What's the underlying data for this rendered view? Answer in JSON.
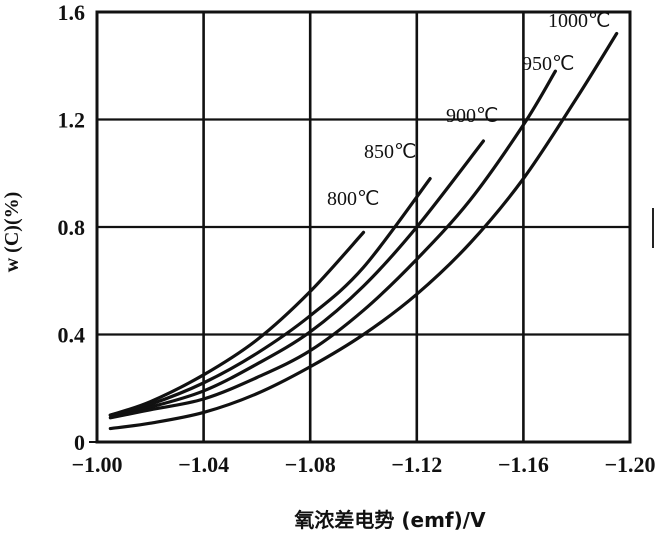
{
  "chart_data": {
    "type": "line",
    "title": "",
    "xlabel": "氧浓差电势 (emf)/V",
    "ylabel": "w (C)(%)",
    "xlim": [
      -1.0,
      -1.2
    ],
    "ylim": [
      0,
      1.6
    ],
    "x_ticks": [
      "-1.00",
      "-1.04",
      "-1.08",
      "-1.12",
      "-1.16",
      "-1.20"
    ],
    "y_ticks": [
      "0",
      "0.4",
      "0.8",
      "1.2",
      "1.6"
    ],
    "grid": true,
    "legend": "inline labels at curve ends",
    "series": [
      {
        "name": "800℃",
        "x": [
          -1.005,
          -1.02,
          -1.04,
          -1.06,
          -1.08,
          -1.1
        ],
        "values": [
          0.1,
          0.15,
          0.25,
          0.38,
          0.56,
          0.78
        ]
      },
      {
        "name": "850℃",
        "x": [
          -1.005,
          -1.02,
          -1.04,
          -1.06,
          -1.08,
          -1.1,
          -1.125
        ],
        "values": [
          0.1,
          0.14,
          0.22,
          0.33,
          0.47,
          0.65,
          0.98
        ]
      },
      {
        "name": "900℃",
        "x": [
          -1.005,
          -1.02,
          -1.04,
          -1.06,
          -1.08,
          -1.1,
          -1.12,
          -1.145
        ],
        "values": [
          0.1,
          0.13,
          0.19,
          0.29,
          0.41,
          0.58,
          0.8,
          1.12
        ]
      },
      {
        "name": "950℃",
        "x": [
          -1.005,
          -1.02,
          -1.04,
          -1.06,
          -1.08,
          -1.1,
          -1.12,
          -1.14,
          -1.16,
          -1.172
        ],
        "values": [
          0.09,
          0.12,
          0.16,
          0.24,
          0.34,
          0.49,
          0.68,
          0.9,
          1.18,
          1.38
        ]
      },
      {
        "name": "1000℃",
        "x": [
          -1.005,
          -1.02,
          -1.04,
          -1.06,
          -1.08,
          -1.1,
          -1.12,
          -1.14,
          -1.16,
          -1.18,
          -1.195
        ],
        "values": [
          0.05,
          0.07,
          0.11,
          0.18,
          0.28,
          0.4,
          0.55,
          0.74,
          0.98,
          1.28,
          1.52
        ]
      }
    ]
  }
}
